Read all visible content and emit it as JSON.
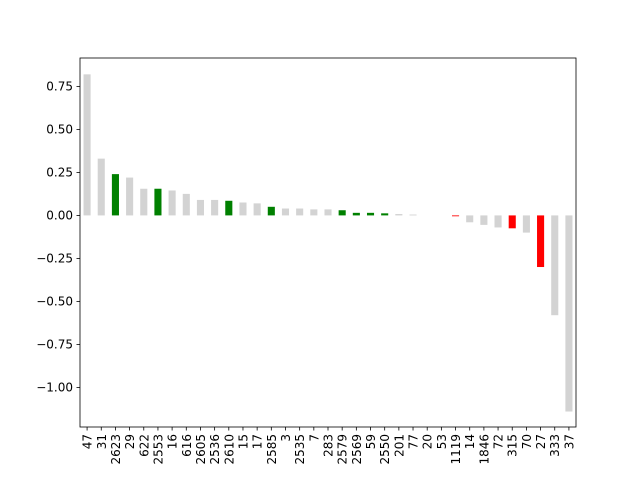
{
  "chart_data": {
    "type": "bar",
    "title": "",
    "xlabel": "",
    "ylabel": "",
    "ylim": [
      -1.23,
      0.915
    ],
    "yticks": [
      -1.0,
      -0.75,
      -0.5,
      -0.25,
      0.0,
      0.25,
      0.5,
      0.75
    ],
    "ytick_labels": [
      "−1.00",
      "−0.75",
      "−0.50",
      "−0.25",
      "0.00",
      "0.25",
      "0.50",
      "0.75"
    ],
    "grid": false,
    "legend": "none",
    "categories": [
      "47",
      "31",
      "2623",
      "29",
      "622",
      "2553",
      "16",
      "616",
      "2605",
      "2536",
      "2610",
      "15",
      "17",
      "2585",
      "3",
      "2535",
      "7",
      "283",
      "2579",
      "2569",
      "59",
      "2550",
      "201",
      "77",
      "20",
      "53",
      "1119",
      "14",
      "1846",
      "72",
      "315",
      "70",
      "27",
      "333",
      "37"
    ],
    "values": [
      0.82,
      0.33,
      0.24,
      0.22,
      0.155,
      0.155,
      0.145,
      0.125,
      0.09,
      0.09,
      0.085,
      0.075,
      0.07,
      0.05,
      0.04,
      0.04,
      0.035,
      0.035,
      0.03,
      0.015,
      0.015,
      0.012,
      0.008,
      0.005,
      0.0,
      0.0,
      -0.005,
      -0.04,
      -0.055,
      -0.07,
      -0.075,
      -0.1,
      -0.3,
      -0.58,
      -1.14
    ],
    "colors": [
      "#d3d3d3",
      "#d3d3d3",
      "#008000",
      "#d3d3d3",
      "#d3d3d3",
      "#008000",
      "#d3d3d3",
      "#d3d3d3",
      "#d3d3d3",
      "#d3d3d3",
      "#008000",
      "#d3d3d3",
      "#d3d3d3",
      "#008000",
      "#d3d3d3",
      "#d3d3d3",
      "#d3d3d3",
      "#d3d3d3",
      "#008000",
      "#008000",
      "#008000",
      "#008000",
      "#d3d3d3",
      "#d3d3d3",
      "#d3d3d3",
      "#d3d3d3",
      "#ff0000",
      "#d3d3d3",
      "#d3d3d3",
      "#d3d3d3",
      "#ff0000",
      "#d3d3d3",
      "#ff0000",
      "#d3d3d3",
      "#d3d3d3"
    ]
  }
}
